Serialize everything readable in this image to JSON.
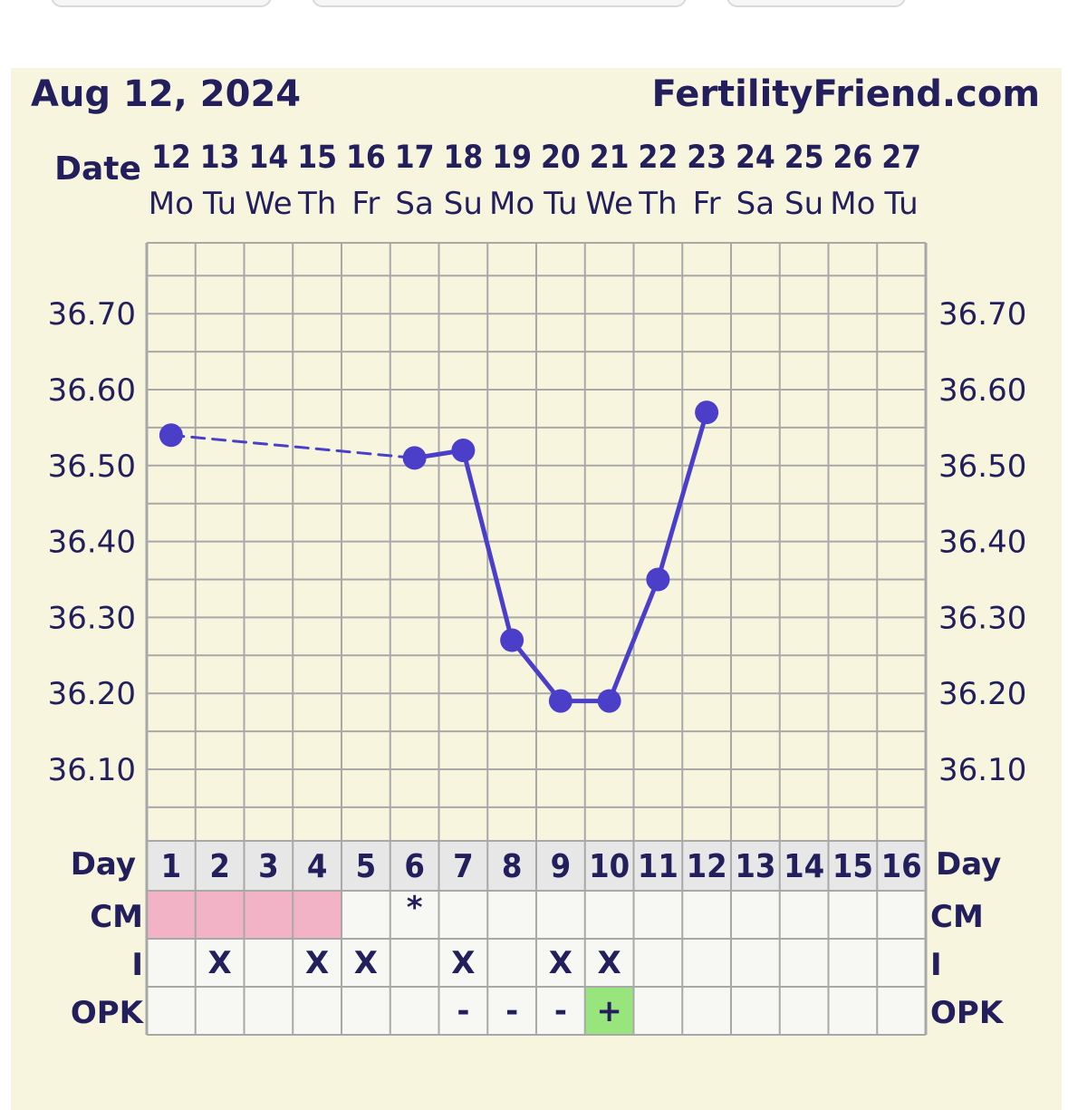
{
  "chart_data": {
    "type": "line",
    "title": "Aug 12, 2024",
    "brand": "FertilityFriend.com",
    "date_header_label": "Date",
    "dates": [
      "12",
      "13",
      "14",
      "15",
      "16",
      "17",
      "18",
      "19",
      "20",
      "21",
      "22",
      "23",
      "24",
      "25",
      "26",
      "27"
    ],
    "weekdays": [
      "Mo",
      "Tu",
      "We",
      "Th",
      "Fr",
      "Sa",
      "Su",
      "Mo",
      "Tu",
      "We",
      "Th",
      "Fr",
      "Sa",
      "Su",
      "Mo",
      "Tu"
    ],
    "y_ticks": [
      "36.70",
      "36.60",
      "36.50",
      "36.40",
      "36.30",
      "36.20",
      "36.10"
    ],
    "ylim": [
      36.0,
      36.8
    ],
    "series": [
      {
        "color": "#4b3fc9",
        "points": [
          {
            "day": 1,
            "value": 36.54
          },
          {
            "day": 6,
            "value": 36.51
          },
          {
            "day": 7,
            "value": 36.52
          },
          {
            "day": 8,
            "value": 36.27
          },
          {
            "day": 9,
            "value": 36.19
          },
          {
            "day": 10,
            "value": 36.19
          },
          {
            "day": 11,
            "value": 36.35
          },
          {
            "day": 12,
            "value": 36.57
          }
        ],
        "dashed_segments": [
          [
            1,
            6
          ]
        ]
      }
    ],
    "cycle_day_label": "Day",
    "cycle_days": [
      "1",
      "2",
      "3",
      "4",
      "5",
      "6",
      "7",
      "8",
      "9",
      "10",
      "11",
      "12",
      "13",
      "14",
      "15",
      "16"
    ],
    "rows": {
      "cm": {
        "label": "CM",
        "marks": [
          "",
          "",
          "",
          "",
          "",
          "*",
          "",
          "",
          "",
          "",
          "",
          "",
          "",
          "",
          "",
          ""
        ],
        "highlighted_days": [
          1,
          2,
          3,
          4
        ],
        "highlight_color": "#f3b3c6"
      },
      "intercourse": {
        "label": "I",
        "marks": [
          "",
          "X",
          "",
          "X",
          "X",
          "",
          "X",
          "",
          "X",
          "X",
          "",
          "",
          "",
          "",
          "",
          ""
        ]
      },
      "opk": {
        "label": "OPK",
        "marks": [
          "",
          "",
          "",
          "",
          "",
          "",
          "-",
          "-",
          "-",
          "+",
          "",
          "",
          "",
          "",
          "",
          ""
        ],
        "positive_days": [
          10
        ],
        "positive_color": "#98e57e"
      }
    },
    "grid": true,
    "colors": {
      "panel_bg": "#f8f5df",
      "grid": "#a8a8a8",
      "text": "#231f5c",
      "day_row_bg": "#e7e7e7",
      "row_bg": "#f7f7f3"
    }
  }
}
